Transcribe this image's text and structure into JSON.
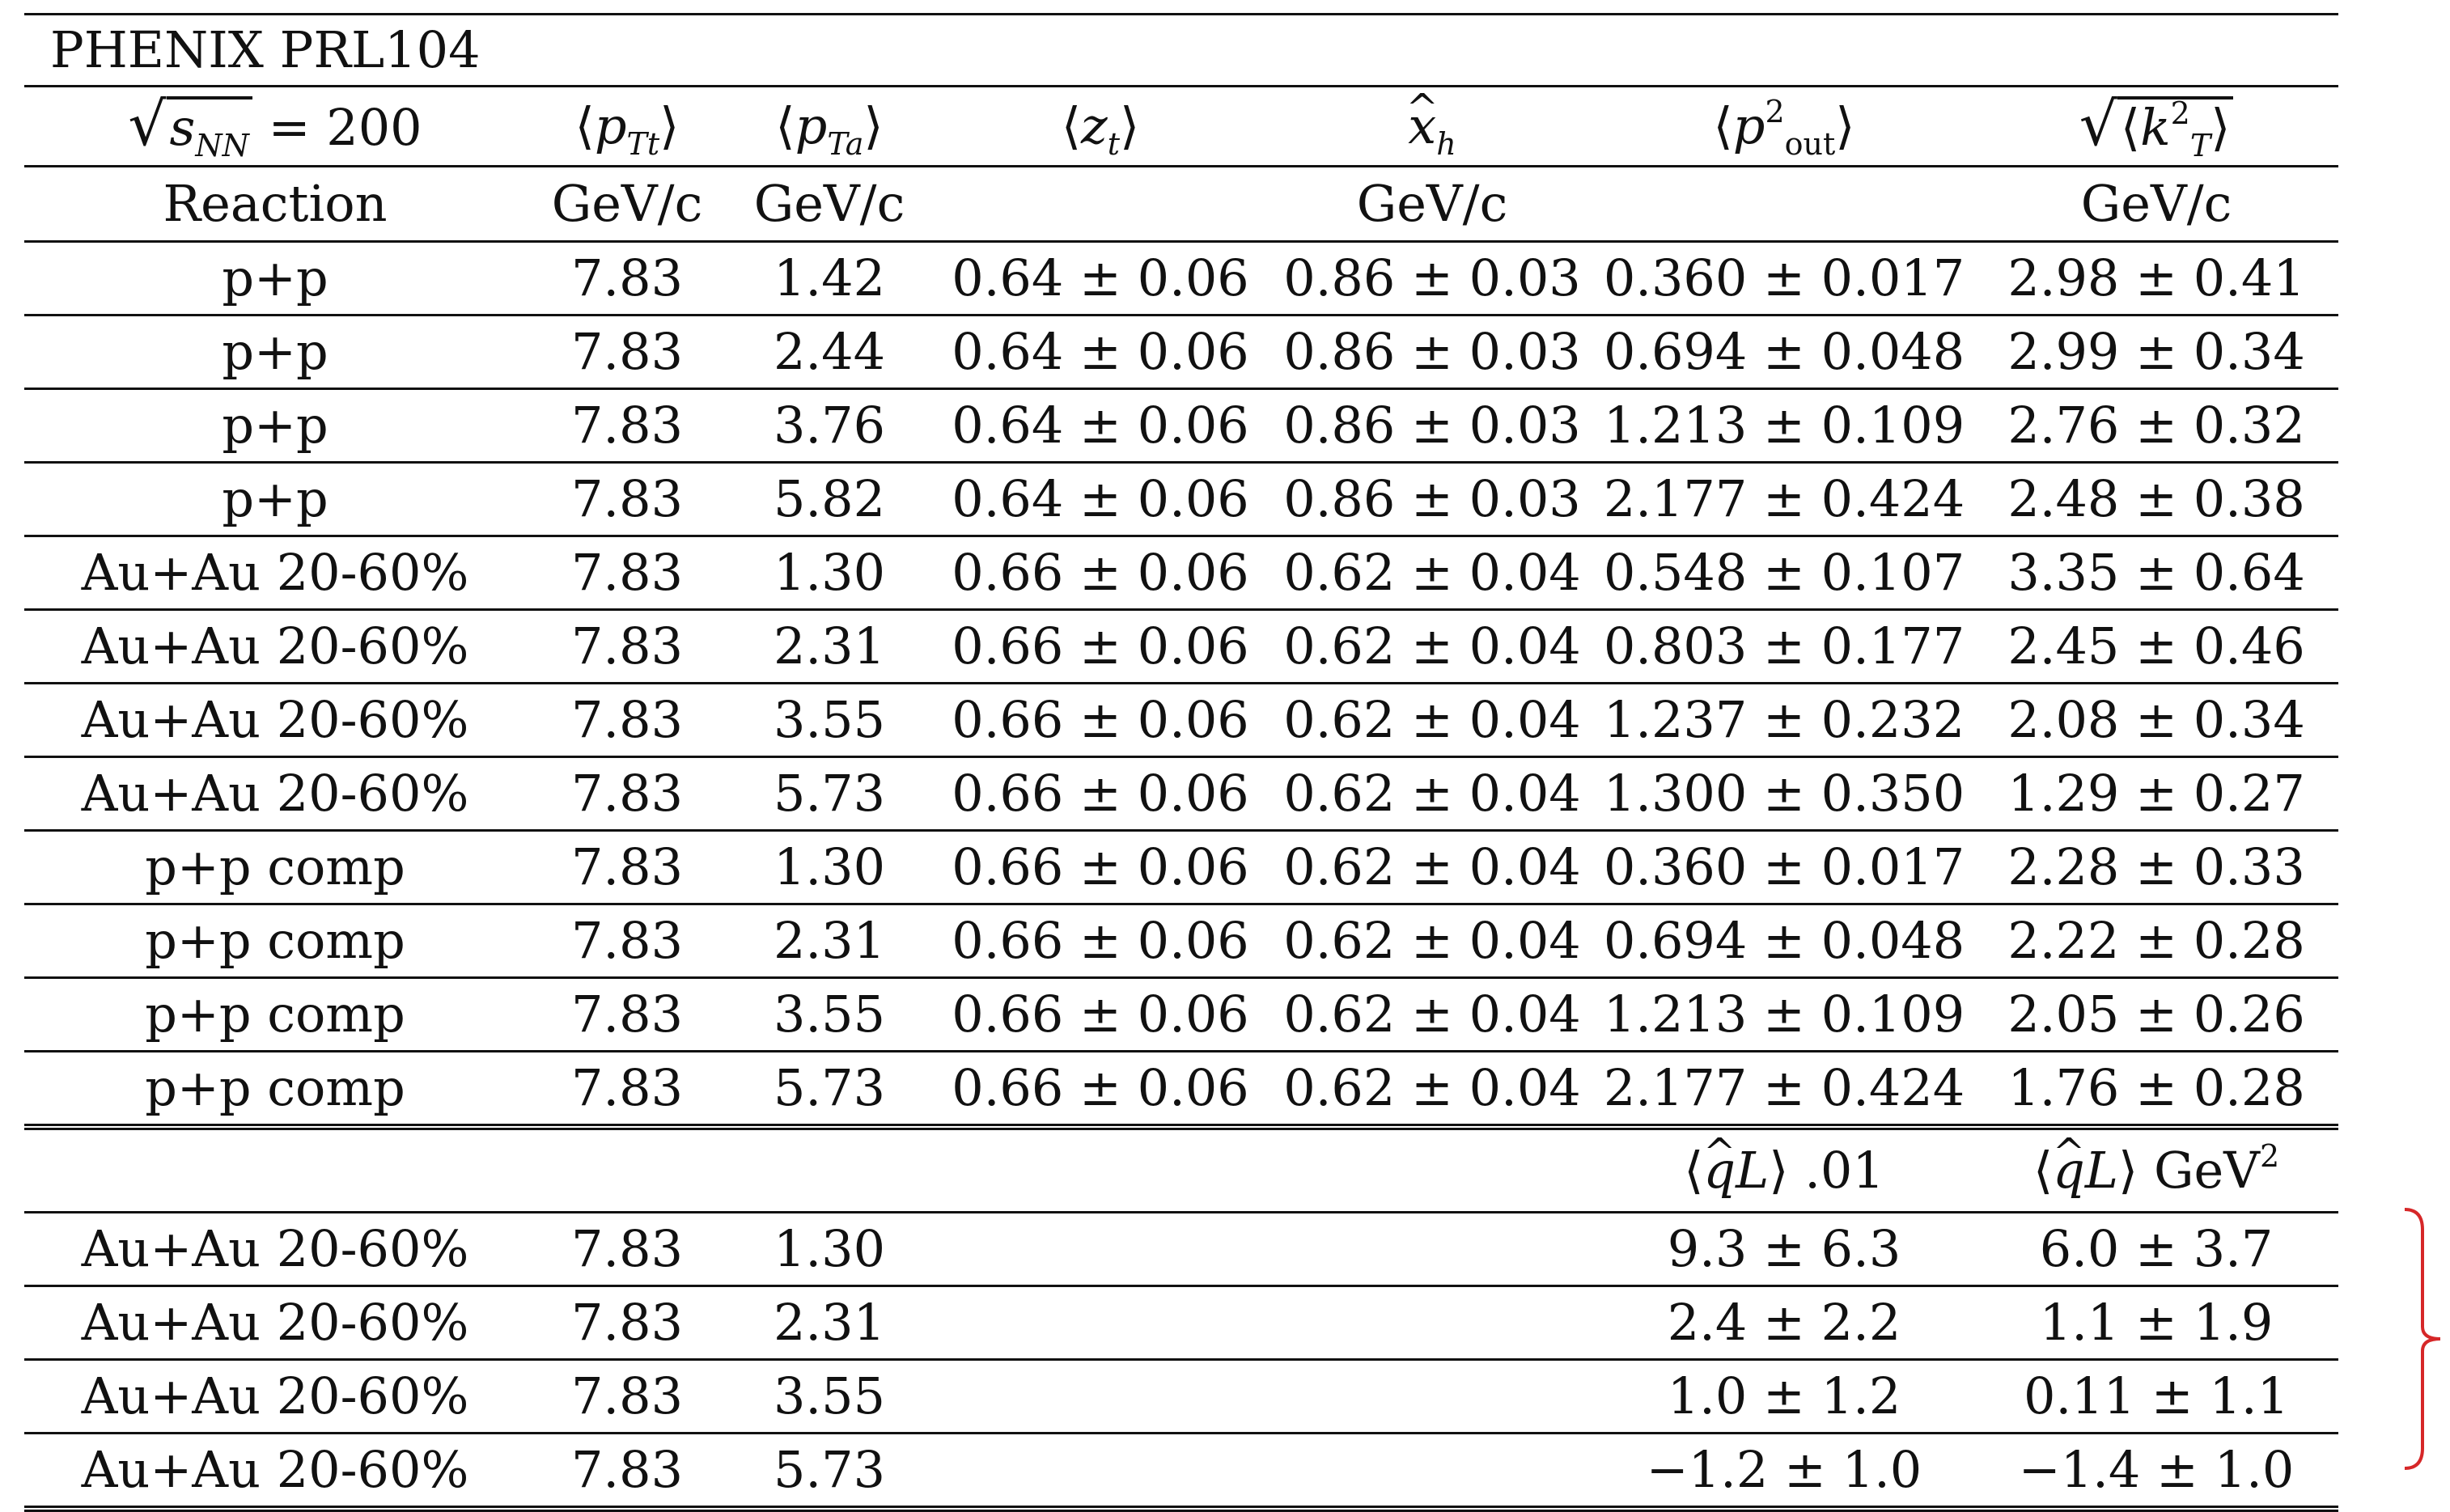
{
  "table": {
    "title": "PHENIX PRL104",
    "header": {
      "energy_value": "= 200",
      "energy_sub": "NN",
      "pTt": "p",
      "pTt_sub": "Tt",
      "pTa": "p",
      "pTa_sub": "Ta",
      "zt": "z",
      "zt_sub": "t",
      "xh": "x",
      "xh_sub": "h",
      "pout": "p",
      "pout_sup": "2",
      "pout_sub": "out",
      "kT": "k",
      "kT_sup": "2",
      "kT_sub": "T"
    },
    "units": {
      "reaction": "Reaction",
      "pTt": "GeV/c",
      "pTa": "GeV/c",
      "zt": "",
      "xh": "GeV/c",
      "pout": "",
      "kT": "GeV/c"
    },
    "rows": [
      [
        "p+p",
        "7.83",
        "1.42",
        "0.64 ± 0.06",
        "0.86 ± 0.03",
        "0.360 ± 0.017",
        "2.98 ± 0.41"
      ],
      [
        "p+p",
        "7.83",
        "2.44",
        "0.64 ± 0.06",
        "0.86 ± 0.03",
        "0.694 ± 0.048",
        "2.99 ± 0.34"
      ],
      [
        "p+p",
        "7.83",
        "3.76",
        "0.64 ± 0.06",
        "0.86 ± 0.03",
        "1.213 ± 0.109",
        "2.76 ± 0.32"
      ],
      [
        "p+p",
        "7.83",
        "5.82",
        "0.64 ± 0.06",
        "0.86 ± 0.03",
        "2.177 ± 0.424",
        "2.48 ± 0.38"
      ],
      [
        "Au+Au 20-60%",
        "7.83",
        "1.30",
        "0.66 ± 0.06",
        "0.62 ± 0.04",
        "0.548 ± 0.107",
        "3.35 ± 0.64"
      ],
      [
        "Au+Au 20-60%",
        "7.83",
        "2.31",
        "0.66 ± 0.06",
        "0.62 ± 0.04",
        "0.803 ± 0.177",
        "2.45 ± 0.46"
      ],
      [
        "Au+Au 20-60%",
        "7.83",
        "3.55",
        "0.66 ± 0.06",
        "0.62 ± 0.04",
        "1.237 ± 0.232",
        "2.08 ± 0.34"
      ],
      [
        "Au+Au 20-60%",
        "7.83",
        "5.73",
        "0.66 ± 0.06",
        "0.62 ± 0.04",
        "1.300 ± 0.350",
        "1.29 ± 0.27"
      ],
      [
        "p+p comp",
        "7.83",
        "1.30",
        "0.66 ± 0.06",
        "0.62 ± 0.04",
        "0.360 ± 0.017",
        "2.28 ± 0.33"
      ],
      [
        "p+p comp",
        "7.83",
        "2.31",
        "0.66 ± 0.06",
        "0.62 ± 0.04",
        "0.694 ± 0.048",
        "2.22 ± 0.28"
      ],
      [
        "p+p comp",
        "7.83",
        "3.55",
        "0.66 ± 0.06",
        "0.62 ± 0.04",
        "1.213 ± 0.109",
        "2.05 ± 0.26"
      ],
      [
        "p+p comp",
        "7.83",
        "5.73",
        "0.66 ± 0.06",
        "0.62 ± 0.04",
        "2.177 ± 0.424",
        "1.76 ± 0.28"
      ]
    ],
    "second_header": {
      "qL_scaled": ".01",
      "qL_unit": "GeV",
      "qL_unit_sup": "2",
      "qL_symbol": "q",
      "qL_L": "L"
    },
    "second_rows": [
      [
        "Au+Au 20-60%",
        "7.83",
        "1.30",
        "",
        "",
        "9.3 ± 6.3",
        "6.0 ± 3.7"
      ],
      [
        "Au+Au 20-60%",
        "7.83",
        "2.31",
        "",
        "",
        "2.4 ± 2.2",
        "1.1 ± 1.9"
      ],
      [
        "Au+Au 20-60%",
        "7.83",
        "3.55",
        "",
        "",
        "1.0 ± 1.2",
        "0.11 ± 1.1"
      ],
      [
        "Au+Au 20-60%",
        "7.83",
        "5.73",
        "",
        "",
        "−1.2 ± 1.0",
        "−1.4 ± 1.0"
      ]
    ]
  },
  "colors": {
    "bracket": "#d62728",
    "rules": "#111111"
  }
}
